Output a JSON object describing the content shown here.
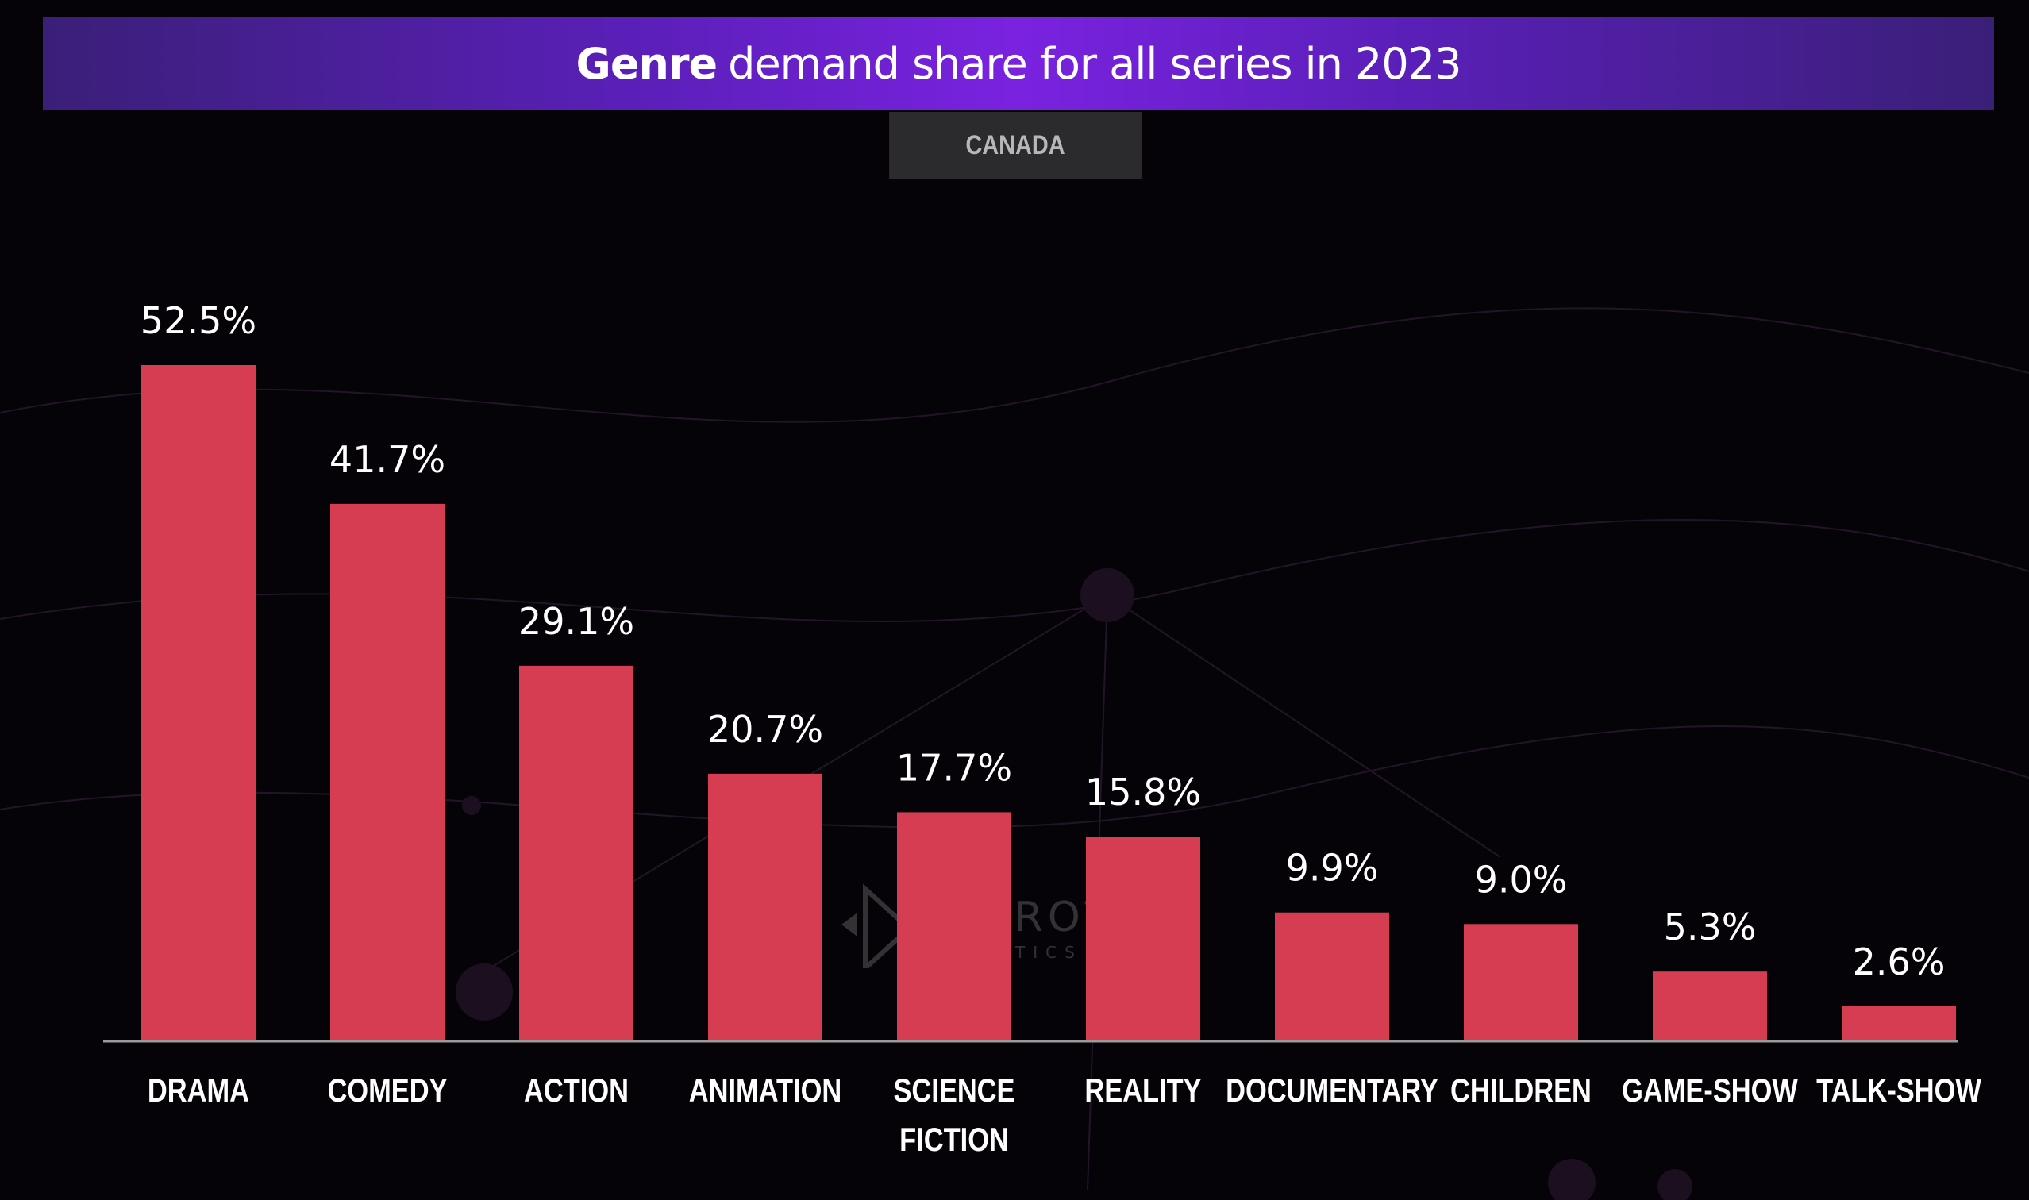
{
  "header": {
    "title_bold": "Genre",
    "title_rest": "demand share for all series in 2023",
    "region": "CANADA"
  },
  "watermark": {
    "brand": "PARROT",
    "sub": "ANALYTICS"
  },
  "colors": {
    "bar": "#d63c52",
    "background": "#050307",
    "title_bar": "#6a22d0"
  },
  "chart_data": {
    "type": "bar",
    "title": "Genre demand share for all series in 2023",
    "subtitle": "CANADA",
    "categories": [
      "DRAMA",
      "COMEDY",
      "ACTION",
      "ANIMATION",
      "SCIENCE FICTION",
      "REALITY",
      "DOCUMENTARY",
      "CHILDREN",
      "GAME-SHOW",
      "TALK-SHOW"
    ],
    "values": [
      52.5,
      41.7,
      29.1,
      20.7,
      17.7,
      15.8,
      9.9,
      9.0,
      5.3,
      2.6
    ],
    "value_labels": [
      "52.5%",
      "41.7%",
      "29.1%",
      "20.7%",
      "17.7%",
      "15.8%",
      "9.9%",
      "9.0%",
      "5.3%",
      "2.6%"
    ],
    "unit": "%",
    "xlabel": "",
    "ylabel": "",
    "ylim": [
      0,
      52.5
    ],
    "grid": false,
    "legend": "none"
  }
}
